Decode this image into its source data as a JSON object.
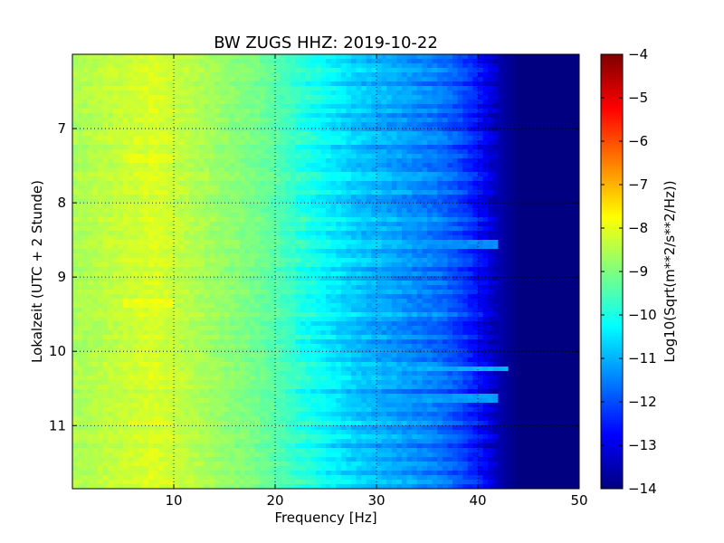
{
  "chart_data": {
    "type": "heatmap",
    "title": "BW ZUGS HHZ: 2019-10-22",
    "xlabel": "Frequency [Hz]",
    "ylabel": "Lokalzeit (UTC + 2 Stunde)",
    "xlim": [
      0,
      50
    ],
    "ylim": [
      6.0,
      11.85
    ],
    "y_inverted": true,
    "x_ticks": [
      10,
      20,
      30,
      40,
      50
    ],
    "y_ticks": [
      7,
      8,
      9,
      10,
      11
    ],
    "grid": true,
    "colormap": "jet",
    "colorbar": {
      "label": "Log10(Sqrt(m**2/s**2/Hz))",
      "range": [
        -14,
        -4
      ],
      "ticks": [
        -4,
        -5,
        -6,
        -7,
        -8,
        -9,
        -10,
        -11,
        -12,
        -13,
        -14
      ]
    },
    "spectrum_profile": {
      "frequency_hz": [
        0,
        5,
        8,
        12,
        15,
        18,
        20,
        22,
        25,
        28,
        30,
        33,
        36,
        38,
        40,
        42,
        44,
        46,
        50
      ],
      "log10_amplitude": [
        -8.6,
        -8.3,
        -8.1,
        -8.5,
        -8.8,
        -9.1,
        -9.4,
        -9.8,
        -10.3,
        -10.8,
        -11.0,
        -11.3,
        -11.6,
        -12.0,
        -12.6,
        -13.5,
        -14.0,
        -14.0,
        -14.0
      ]
    },
    "highlights": [
      {
        "time": 10.23,
        "frequency_range_hz": [
          20,
          43
        ],
        "log10_amplitude": -11.0
      },
      {
        "time": 10.65,
        "frequency_range_hz": [
          25,
          42
        ],
        "log10_amplitude": -11.2
      },
      {
        "time": 8.55,
        "frequency_range_hz": [
          30,
          42
        ],
        "log10_amplitude": -11.4
      },
      {
        "time": 9.35,
        "frequency_range_hz": [
          5,
          10
        ],
        "log10_amplitude": -7.9
      },
      {
        "time": 7.4,
        "frequency_range_hz": [
          5,
          10
        ],
        "log10_amplitude": -8.0
      }
    ]
  }
}
